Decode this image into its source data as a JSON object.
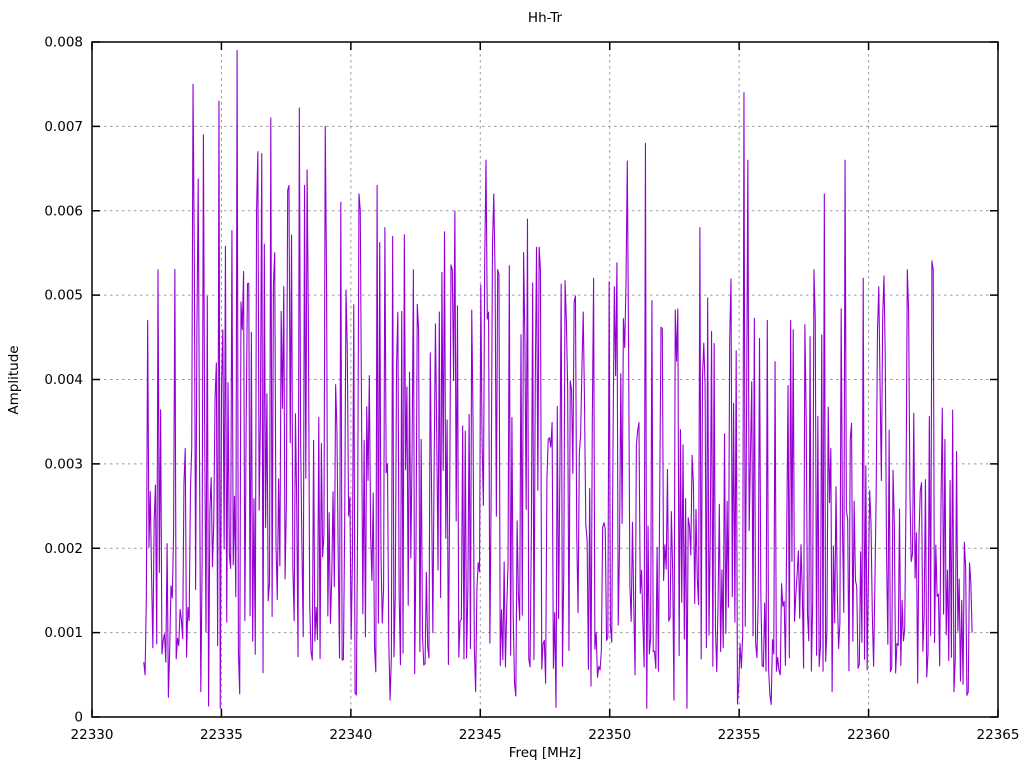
{
  "chart_data": {
    "type": "line",
    "title": "Hh-Tr",
    "xlabel": "Freq [MHz]",
    "ylabel": "Amplitude",
    "xlim": [
      22330,
      22365
    ],
    "ylim": [
      0,
      0.008
    ],
    "xtick_values": [
      22330,
      22335,
      22340,
      22345,
      22350,
      22355,
      22360,
      22365
    ],
    "xtick_labels": [
      "22330",
      "22335",
      "22340",
      "22345",
      "22350",
      "22355",
      "22360",
      "22365"
    ],
    "ytick_values": [
      0,
      0.001,
      0.002,
      0.003,
      0.004,
      0.005,
      0.006,
      0.007,
      0.008
    ],
    "ytick_labels": [
      "0",
      "0.001",
      "0.002",
      "0.003",
      "0.004",
      "0.005",
      "0.006",
      "0.007",
      "0.008"
    ],
    "grid": true,
    "legend": "none",
    "line_color": "#9400d3",
    "grid_color": "#9c9c9c",
    "border_color": "#000000",
    "background_color": "#ffffff",
    "series": {
      "name": "Hh-Tr",
      "x_start": 22332.0,
      "x_end": 22364.0,
      "n_points": 640,
      "seed": 1337,
      "amplitude_envelope": [
        [
          22332.0,
          0.0024
        ],
        [
          22333.0,
          0.0037
        ],
        [
          22337.5,
          0.0038
        ],
        [
          22342.0,
          0.0034
        ],
        [
          22348.0,
          0.0032
        ],
        [
          22352.0,
          0.0029
        ],
        [
          22356.0,
          0.003
        ],
        [
          22360.0,
          0.003
        ],
        [
          22362.0,
          0.0027
        ],
        [
          22363.4,
          0.002
        ],
        [
          22364.0,
          0.0013
        ]
      ],
      "peaks": [
        [
          22332.15,
          0.0047
        ],
        [
          22332.55,
          0.0053
        ],
        [
          22333.9,
          0.0075
        ],
        [
          22334.3,
          0.0069
        ],
        [
          22334.9,
          0.0073
        ],
        [
          22335.6,
          0.0079
        ],
        [
          22336.4,
          0.0067
        ],
        [
          22336.9,
          0.0071
        ],
        [
          22337.6,
          0.0063
        ],
        [
          22338.2,
          0.0063
        ],
        [
          22339.0,
          0.007
        ],
        [
          22339.6,
          0.0061
        ],
        [
          22340.3,
          0.0062
        ],
        [
          22341.0,
          0.0063
        ],
        [
          22341.3,
          0.0058
        ],
        [
          22342.4,
          0.0053
        ],
        [
          22343.4,
          0.0048
        ],
        [
          22343.9,
          0.0053
        ],
        [
          22345.2,
          0.0066
        ],
        [
          22345.5,
          0.0062
        ],
        [
          22346.8,
          0.0059
        ],
        [
          22347.3,
          0.0053
        ],
        [
          22349.0,
          0.0048
        ],
        [
          22349.4,
          0.0052
        ],
        [
          22350.2,
          0.0051
        ],
        [
          22351.4,
          0.0068
        ],
        [
          22353.5,
          0.0058
        ],
        [
          22355.2,
          0.0074
        ],
        [
          22355.35,
          0.0066
        ],
        [
          22356.1,
          0.0047
        ],
        [
          22357.0,
          0.0047
        ],
        [
          22357.9,
          0.0053
        ],
        [
          22358.3,
          0.0062
        ],
        [
          22359.1,
          0.0066
        ],
        [
          22359.8,
          0.0052
        ],
        [
          22360.4,
          0.0051
        ],
        [
          22361.5,
          0.0053
        ],
        [
          22362.5,
          0.0053
        ]
      ],
      "dips": [
        [
          22332.05,
          0.0005
        ],
        [
          22333.0,
          0.0008
        ],
        [
          22334.95,
          0.0001
        ],
        [
          22336.2,
          0.0009
        ],
        [
          22338.6,
          0.0009
        ],
        [
          22341.5,
          0.0002
        ],
        [
          22343.0,
          0.0007
        ],
        [
          22344.8,
          0.0003
        ],
        [
          22346.3,
          0.0004
        ],
        [
          22347.5,
          0.0004
        ],
        [
          22349.6,
          0.0006
        ],
        [
          22351.0,
          0.0005
        ],
        [
          22352.5,
          0.0002
        ],
        [
          22354.0,
          0.0006
        ],
        [
          22355.0,
          0.0004
        ],
        [
          22356.6,
          0.0005
        ],
        [
          22358.6,
          0.0003
        ],
        [
          22360.2,
          0.0006
        ],
        [
          22361.9,
          0.0004
        ],
        [
          22363.3,
          0.0003
        ],
        [
          22364.0,
          0.001
        ]
      ]
    }
  }
}
